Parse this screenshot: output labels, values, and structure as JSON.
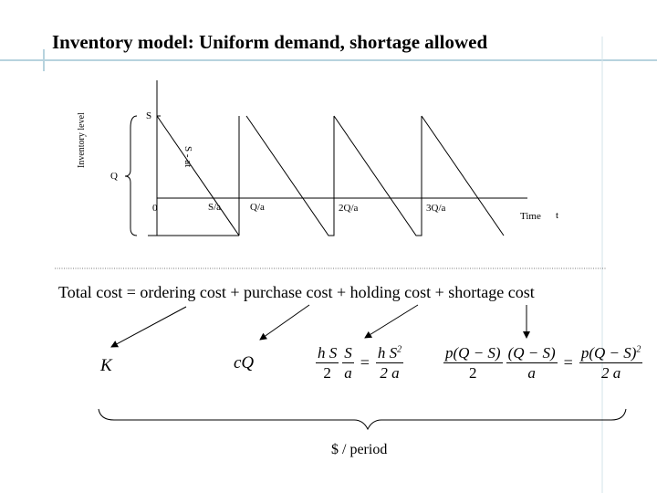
{
  "title": "Inventory model: Uniform demand, shortage allowed",
  "graph": {
    "y_axis_label": "Inventory level",
    "s_label": "S",
    "q_label": "Q",
    "slope_label": "S - at",
    "origin_label": "0",
    "tick_labels": [
      "S/a",
      "Q/a",
      "2Q/a",
      "3Q/a"
    ],
    "time_label": "Time",
    "t_label": "t"
  },
  "equation": {
    "total_cost": "Total cost = ordering cost + purchase cost + holding cost + shortage cost",
    "ordering": "K",
    "purchase": "cQ",
    "holding": {
      "f1_num": "h S",
      "f1_den": "2",
      "f2_num": "S",
      "f2_den": "a",
      "f3_num": "h S",
      "f3_sup": "2",
      "f3_den": "2 a"
    },
    "shortage": {
      "f1_num": "p(Q − S)",
      "f1_den": "2",
      "f2_num": "(Q − S)",
      "f2_den": "a",
      "f3_num": "p(Q − S)",
      "f3_sup": "2",
      "f3_den": "2 a"
    },
    "eq_sign": "=",
    "per_period": "$ / period"
  },
  "colors": {
    "accent": "#b7d3de",
    "ink": "#000000"
  }
}
